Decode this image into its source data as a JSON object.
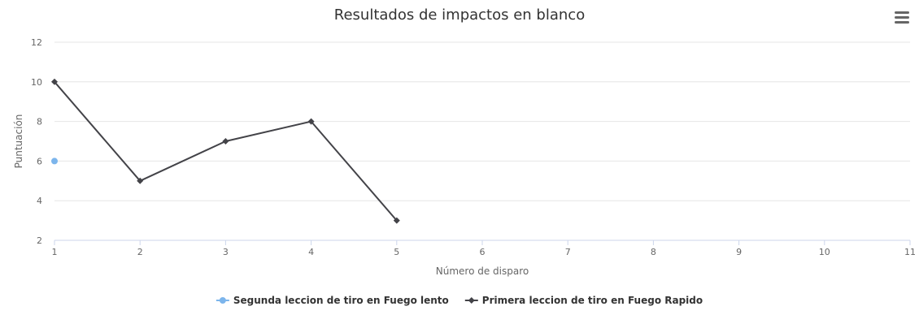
{
  "chart_data": {
    "type": "line",
    "title": "Resultados de impactos en blanco",
    "xlabel": "Número de disparo",
    "ylabel": "Puntuación",
    "xlim": [
      1,
      11
    ],
    "ylim": [
      2,
      12
    ],
    "x_ticks": [
      1,
      2,
      3,
      4,
      5,
      6,
      7,
      8,
      9,
      10,
      11
    ],
    "y_ticks": [
      2,
      4,
      6,
      8,
      10,
      12
    ],
    "grid": true,
    "legend_position": "bottom-center",
    "series": [
      {
        "name": "Segunda leccion de tiro en Fuego lento",
        "color": "#7cb5ec",
        "marker": "circle",
        "x": [
          1
        ],
        "values": [
          6
        ]
      },
      {
        "name": "Primera leccion de tiro en Fuego Rapido",
        "color": "#434348",
        "marker": "diamond",
        "x": [
          1,
          2,
          3,
          4,
          5
        ],
        "values": [
          10,
          5,
          7,
          8,
          3
        ]
      }
    ]
  },
  "menu_icon": "hamburger-menu-icon"
}
